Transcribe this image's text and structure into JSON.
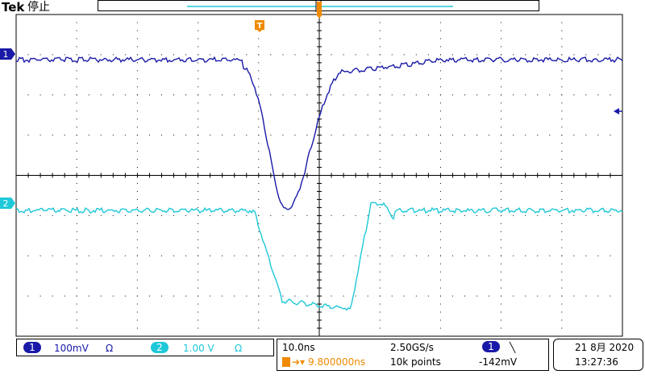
{
  "header": {
    "brand": "Tek",
    "state": "停止"
  },
  "markers": {
    "trigger_label": "T",
    "ch1_label": "1",
    "ch2_label": "2"
  },
  "colors": {
    "ch1": "#1a1aa8",
    "ch2": "#1ec8d8",
    "trigger": "#f08a00",
    "grid": "#000000"
  },
  "channels": {
    "ch1": {
      "number": "1",
      "scale": "100mV",
      "coupling_icon": "Ω"
    },
    "ch2": {
      "number": "2",
      "scale": "1.00 V",
      "coupling_icon": "Ω"
    }
  },
  "timebase": {
    "scale": "10.0ns",
    "sample_rate": "2.50GS/s",
    "position": "9.800000ns",
    "record_length": "10k points"
  },
  "trigger": {
    "source": "1",
    "slope_icon": "╲",
    "level": "-142mV"
  },
  "clock": {
    "date": "21 8月 2020",
    "time": "13:27:36"
  }
}
